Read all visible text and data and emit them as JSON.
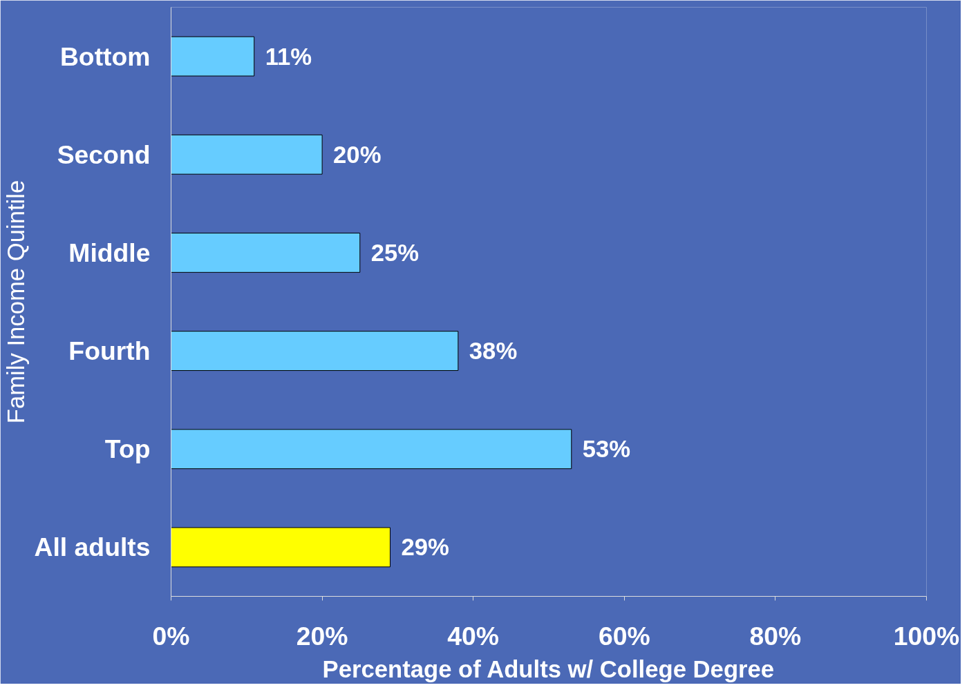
{
  "chart_data": {
    "type": "bar",
    "orientation": "horizontal",
    "categories": [
      "Bottom",
      "Second",
      "Middle",
      "Fourth",
      "Top",
      "All adults"
    ],
    "values": [
      11,
      20,
      25,
      38,
      53,
      29
    ],
    "colors": [
      "#66ccff",
      "#66ccff",
      "#66ccff",
      "#66ccff",
      "#66ccff",
      "#ffff00"
    ],
    "value_labels": [
      "11%",
      "20%",
      "25%",
      "38%",
      "53%",
      "29%"
    ],
    "xlim": [
      0,
      100
    ],
    "xticks": [
      {
        "value": 0,
        "label": "0%"
      },
      {
        "value": 20,
        "label": "20%"
      },
      {
        "value": 40,
        "label": "40%"
      },
      {
        "value": 60,
        "label": "60%"
      },
      {
        "value": 80,
        "label": "80%"
      },
      {
        "value": 100,
        "label": "100%"
      }
    ],
    "xlabel": "Percentage of Adults w/ College Degree",
    "ylabel": "Family Income Quintile",
    "grid": false
  }
}
